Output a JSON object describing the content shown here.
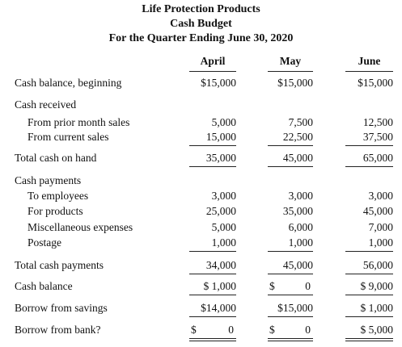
{
  "header": {
    "title": "Life Protection Products",
    "subtitle": "Cash Budget",
    "period": "For the Quarter Ending June 30, 2020"
  },
  "table": {
    "columns": [
      "April",
      "May",
      "June"
    ],
    "rows": [
      {
        "label": "Cash balance, beginning",
        "values": [
          "$15,000",
          "$15,000",
          "$15,000"
        ]
      },
      {
        "label": "Cash received",
        "items": [
          {
            "label": "From prior month sales",
            "values": [
              "5,000",
              "7,500",
              "12,500"
            ]
          },
          {
            "label": "From current sales",
            "values": [
              "15,000",
              "22,500",
              "37,500"
            ]
          }
        ]
      },
      {
        "label": "Total cash on hand",
        "values": [
          "35,000",
          "45,000",
          "65,000"
        ]
      },
      {
        "label": "Cash payments",
        "items": [
          {
            "label": "To employees",
            "values": [
              "3,000",
              "3,000",
              "3,000"
            ]
          },
          {
            "label": "For products",
            "values": [
              "25,000",
              "35,000",
              "45,000"
            ]
          },
          {
            "label": "Miscellaneous expenses",
            "values": [
              "5,000",
              "6,000",
              "7,000"
            ]
          },
          {
            "label": "Postage",
            "values": [
              "1,000",
              "1,000",
              "1,000"
            ]
          }
        ]
      },
      {
        "label": "Total cash payments",
        "values": [
          "34,000",
          "45,000",
          "56,000"
        ]
      },
      {
        "label": "Cash balance",
        "values": [
          "$ 1,000",
          [
            "$",
            "0"
          ],
          "$ 9,000"
        ]
      },
      {
        "label": "Borrow from savings",
        "values": [
          "$14,000",
          "$15,000",
          "$ 1,000"
        ]
      },
      {
        "label": "Borrow from bank?",
        "values": [
          [
            "$",
            "0"
          ],
          [
            "$",
            "0"
          ],
          "$ 5,000"
        ]
      }
    ]
  }
}
